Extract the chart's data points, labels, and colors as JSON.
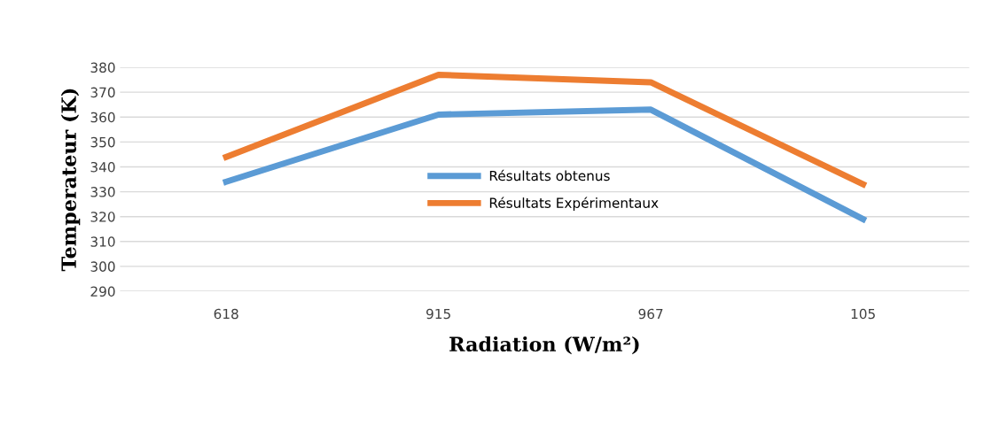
{
  "chart_data": {
    "type": "line",
    "xlabel": "Radiation (W/m²)",
    "ylabel": "Temperateur (K)",
    "categories": [
      "618",
      "915",
      "967",
      "105"
    ],
    "series": [
      {
        "name": "Résultats obtenus",
        "color": "#5b9bd5",
        "values": [
          334,
          361,
          363,
          319
        ]
      },
      {
        "name": "Résultats Expérimentaux",
        "color": "#ed7d31",
        "values": [
          344,
          377,
          374,
          333
        ]
      }
    ],
    "ylim": [
      290,
      380
    ],
    "yticks": [
      290,
      300,
      310,
      320,
      330,
      340,
      350,
      360,
      370,
      380
    ],
    "grid": "y",
    "legend": "center",
    "marker": "none",
    "line_style": "solid"
  }
}
